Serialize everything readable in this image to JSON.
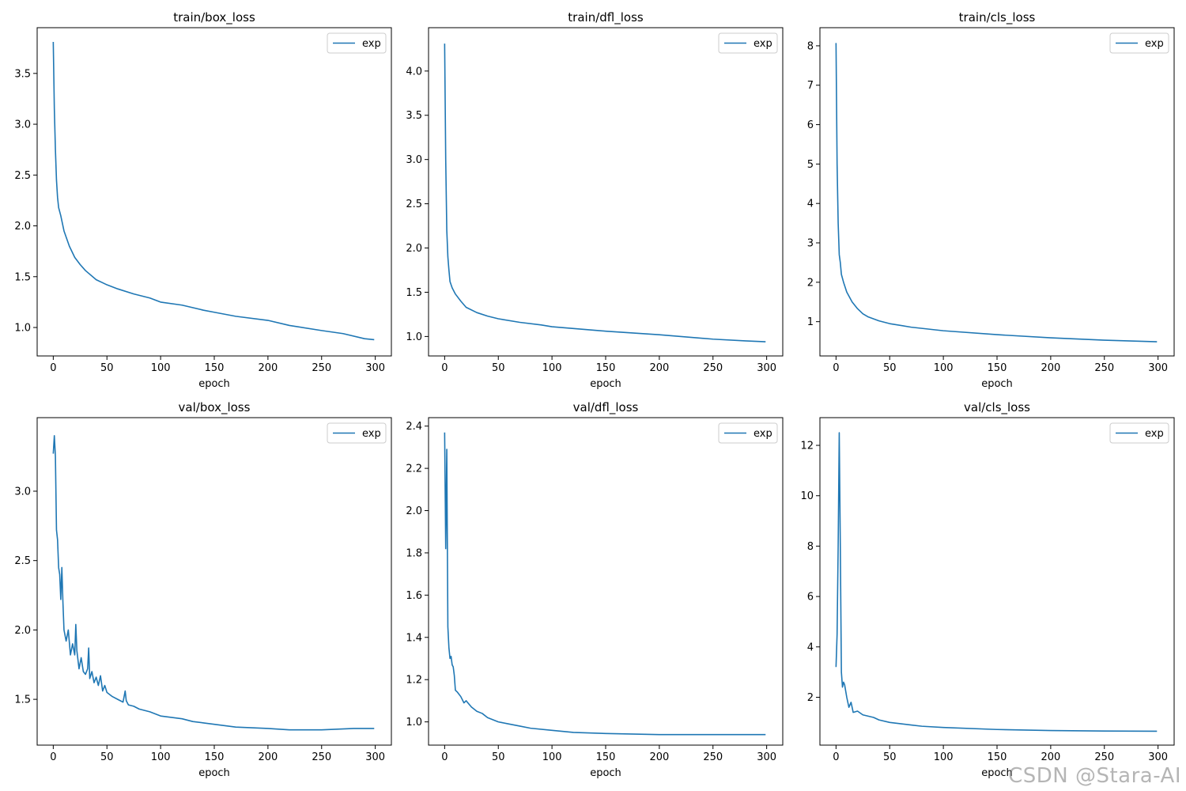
{
  "chart_data": [
    {
      "type": "line",
      "title": "train/box_loss",
      "xlabel": "epoch",
      "xlim": [
        -15,
        315
      ],
      "ylim": [
        0.72,
        3.95
      ],
      "xticks": [
        "0",
        "50",
        "100",
        "150",
        "200",
        "250",
        "300"
      ],
      "yticks": [
        "1.0",
        "1.5",
        "2.0",
        "2.5",
        "3.0",
        "3.5"
      ],
      "legend": "exp",
      "color": "#1f77b4",
      "x": [
        0,
        1,
        2,
        3,
        4,
        5,
        7,
        10,
        15,
        20,
        25,
        30,
        40,
        50,
        60,
        75,
        90,
        100,
        120,
        140,
        150,
        170,
        200,
        220,
        250,
        270,
        290,
        299
      ],
      "y": [
        3.81,
        3.15,
        2.75,
        2.45,
        2.28,
        2.18,
        2.1,
        1.95,
        1.8,
        1.69,
        1.62,
        1.56,
        1.47,
        1.42,
        1.38,
        1.33,
        1.29,
        1.25,
        1.22,
        1.17,
        1.15,
        1.11,
        1.07,
        1.02,
        0.97,
        0.94,
        0.89,
        0.88
      ]
    },
    {
      "type": "line",
      "title": "train/dfl_loss",
      "xlabel": "epoch",
      "xlim": [
        -15,
        315
      ],
      "ylim": [
        0.78,
        4.49
      ],
      "xticks": [
        "0",
        "50",
        "100",
        "150",
        "200",
        "250",
        "300"
      ],
      "yticks": [
        "1.0",
        "1.5",
        "2.0",
        "2.5",
        "3.0",
        "3.5",
        "4.0"
      ],
      "legend": "exp",
      "color": "#1f77b4",
      "x": [
        0,
        1,
        2,
        3,
        4,
        5,
        7,
        10,
        15,
        20,
        30,
        40,
        50,
        70,
        90,
        100,
        130,
        150,
        200,
        250,
        280,
        299
      ],
      "y": [
        4.31,
        3.0,
        2.2,
        1.9,
        1.75,
        1.62,
        1.55,
        1.48,
        1.4,
        1.33,
        1.27,
        1.23,
        1.2,
        1.16,
        1.13,
        1.11,
        1.08,
        1.06,
        1.02,
        0.97,
        0.95,
        0.94
      ]
    },
    {
      "type": "line",
      "title": "train/cls_loss",
      "xlabel": "epoch",
      "xlim": [
        -15,
        315
      ],
      "ylim": [
        0.13,
        8.46
      ],
      "xticks": [
        "0",
        "50",
        "100",
        "150",
        "200",
        "250",
        "300"
      ],
      "yticks": [
        "1",
        "2",
        "3",
        "4",
        "5",
        "6",
        "7",
        "8"
      ],
      "legend": "exp",
      "color": "#1f77b4",
      "x": [
        0,
        1,
        2,
        3,
        4,
        5,
        7,
        10,
        15,
        20,
        25,
        30,
        40,
        50,
        70,
        100,
        150,
        200,
        250,
        299
      ],
      "y": [
        8.07,
        5.0,
        3.5,
        2.7,
        2.5,
        2.2,
        2.0,
        1.75,
        1.5,
        1.33,
        1.2,
        1.12,
        1.02,
        0.95,
        0.86,
        0.77,
        0.67,
        0.59,
        0.53,
        0.49
      ]
    },
    {
      "type": "line",
      "title": "val/box_loss",
      "xlabel": "epoch",
      "xlim": [
        -15,
        315
      ],
      "ylim": [
        1.17,
        3.53
      ],
      "xticks": [
        "0",
        "50",
        "100",
        "150",
        "200",
        "250",
        "300"
      ],
      "yticks": [
        "1.5",
        "2.0",
        "2.5",
        "3.0"
      ],
      "legend": "exp",
      "color": "#1f77b4",
      "x": [
        0,
        1,
        2,
        3,
        4,
        5,
        6,
        7,
        8,
        9,
        10,
        12,
        14,
        16,
        18,
        20,
        21,
        22,
        24,
        26,
        28,
        30,
        32,
        33,
        34,
        36,
        38,
        40,
        42,
        44,
        46,
        48,
        50,
        55,
        60,
        65,
        67,
        68,
        70,
        75,
        80,
        90,
        100,
        110,
        120,
        130,
        140,
        150,
        170,
        200,
        220,
        250,
        280,
        299
      ],
      "y": [
        3.27,
        3.4,
        3.25,
        2.72,
        2.65,
        2.45,
        2.4,
        2.22,
        2.45,
        2.2,
        2.0,
        1.92,
        2.0,
        1.82,
        1.9,
        1.82,
        2.04,
        1.85,
        1.72,
        1.8,
        1.7,
        1.68,
        1.72,
        1.87,
        1.65,
        1.7,
        1.62,
        1.66,
        1.6,
        1.67,
        1.56,
        1.6,
        1.55,
        1.52,
        1.5,
        1.48,
        1.56,
        1.49,
        1.46,
        1.45,
        1.43,
        1.41,
        1.38,
        1.37,
        1.36,
        1.34,
        1.33,
        1.32,
        1.3,
        1.29,
        1.28,
        1.28,
        1.29,
        1.29
      ]
    },
    {
      "type": "line",
      "title": "val/dfl_loss",
      "xlabel": "epoch",
      "xlim": [
        -15,
        315
      ],
      "ylim": [
        0.89,
        2.44
      ],
      "xticks": [
        "0",
        "50",
        "100",
        "150",
        "200",
        "250",
        "300"
      ],
      "yticks": [
        "1.0",
        "1.2",
        "1.4",
        "1.6",
        "1.8",
        "2.0",
        "2.2",
        "2.4"
      ],
      "legend": "exp",
      "color": "#1f77b4",
      "x": [
        0,
        1,
        2,
        3,
        4,
        5,
        6,
        7,
        8,
        9,
        10,
        12,
        15,
        18,
        20,
        25,
        30,
        35,
        40,
        50,
        60,
        70,
        80,
        100,
        120,
        150,
        200,
        250,
        299
      ],
      "y": [
        2.37,
        1.82,
        2.29,
        1.45,
        1.35,
        1.3,
        1.31,
        1.27,
        1.26,
        1.22,
        1.15,
        1.14,
        1.12,
        1.09,
        1.1,
        1.07,
        1.05,
        1.04,
        1.02,
        1.0,
        0.99,
        0.98,
        0.97,
        0.96,
        0.95,
        0.945,
        0.94,
        0.94,
        0.94
      ]
    },
    {
      "type": "line",
      "title": "val/cls_loss",
      "xlabel": "epoch",
      "xlim": [
        -15,
        315
      ],
      "ylim": [
        0.1,
        13.1
      ],
      "xticks": [
        "0",
        "50",
        "100",
        "150",
        "200",
        "250",
        "300"
      ],
      "yticks": [
        "2",
        "4",
        "6",
        "8",
        "10",
        "12"
      ],
      "legend": "exp",
      "color": "#1f77b4",
      "x": [
        0,
        1,
        2,
        3,
        4,
        5,
        6,
        7,
        8,
        10,
        12,
        14,
        16,
        20,
        25,
        30,
        35,
        40,
        50,
        60,
        70,
        80,
        100,
        150,
        200,
        250,
        299
      ],
      "y": [
        3.2,
        4.5,
        8.0,
        12.5,
        8.0,
        3.0,
        2.4,
        2.6,
        2.5,
        2.0,
        1.6,
        1.8,
        1.4,
        1.45,
        1.3,
        1.25,
        1.2,
        1.1,
        1.0,
        0.95,
        0.9,
        0.85,
        0.8,
        0.72,
        0.68,
        0.66,
        0.65
      ]
    }
  ],
  "watermark": "CSDN @Stara-AI"
}
